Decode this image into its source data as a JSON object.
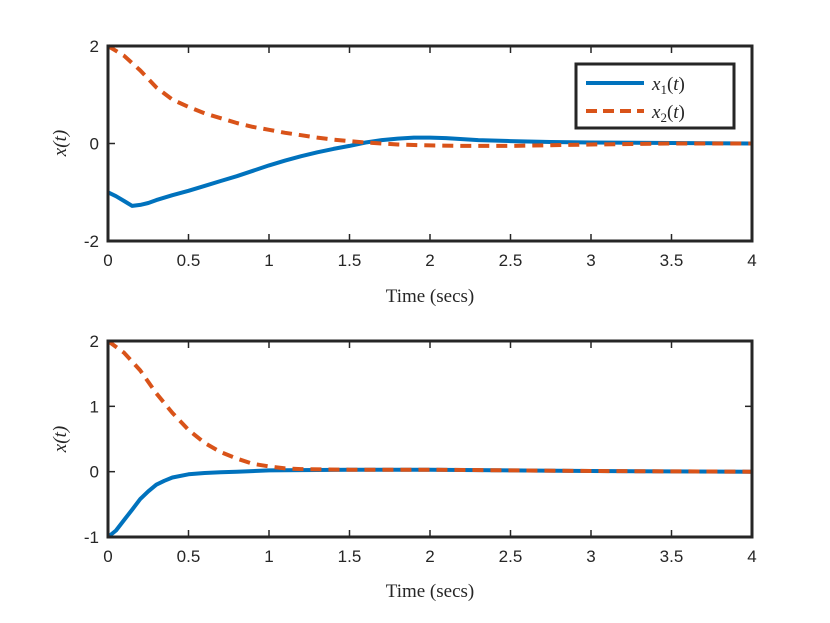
{
  "chart_data": [
    {
      "type": "line",
      "title": "",
      "xlabel": "Time (secs)",
      "ylabel": "x(t)",
      "xlim": [
        0,
        4
      ],
      "ylim": [
        -2,
        2
      ],
      "xticks": [
        "0",
        "0.5",
        "1",
        "1.5",
        "2",
        "2.5",
        "3",
        "3.5",
        "4"
      ],
      "yticks": [
        "-2",
        "0",
        "2"
      ],
      "legend": {
        "position": "top-right",
        "entries": [
          "x1(t)",
          "x2(t)"
        ]
      },
      "series": [
        {
          "name": "x1(t)",
          "color": "#0072BD",
          "style": "solid",
          "x": [
            0,
            0.05,
            0.1,
            0.15,
            0.2,
            0.25,
            0.3,
            0.4,
            0.5,
            0.6,
            0.7,
            0.8,
            0.9,
            1.0,
            1.1,
            1.2,
            1.3,
            1.4,
            1.5,
            1.6,
            1.7,
            1.8,
            1.9,
            2.0,
            2.1,
            2.2,
            2.3,
            2.5,
            2.75,
            3.0,
            3.5,
            4.0
          ],
          "y": [
            -1.0,
            -1.08,
            -1.18,
            -1.28,
            -1.26,
            -1.22,
            -1.16,
            -1.06,
            -0.97,
            -0.87,
            -0.77,
            -0.67,
            -0.56,
            -0.45,
            -0.35,
            -0.26,
            -0.18,
            -0.11,
            -0.05,
            0.02,
            0.07,
            0.1,
            0.12,
            0.12,
            0.11,
            0.09,
            0.07,
            0.05,
            0.03,
            0.02,
            0.01,
            0.0
          ]
        },
        {
          "name": "x2(t)",
          "color": "#D95319",
          "style": "dashed",
          "x": [
            0,
            0.1,
            0.2,
            0.3,
            0.4,
            0.5,
            0.6,
            0.7,
            0.8,
            0.9,
            1.0,
            1.1,
            1.2,
            1.3,
            1.4,
            1.5,
            1.6,
            1.7,
            1.8,
            1.9,
            2.0,
            2.2,
            2.5,
            3.0,
            3.5,
            4.0
          ],
          "y": [
            2.0,
            1.8,
            1.5,
            1.15,
            0.9,
            0.75,
            0.62,
            0.52,
            0.42,
            0.34,
            0.28,
            0.22,
            0.17,
            0.12,
            0.08,
            0.05,
            0.02,
            0.0,
            -0.02,
            -0.03,
            -0.04,
            -0.05,
            -0.05,
            -0.02,
            0.0,
            0.0
          ]
        }
      ]
    },
    {
      "type": "line",
      "title": "",
      "xlabel": "Time (secs)",
      "ylabel": "x(t)",
      "xlim": [
        0,
        4
      ],
      "ylim": [
        -1,
        2
      ],
      "xticks": [
        "0",
        "0.5",
        "1",
        "1.5",
        "2",
        "2.5",
        "3",
        "3.5",
        "4"
      ],
      "yticks": [
        "-1",
        "0",
        "1",
        "2"
      ],
      "series": [
        {
          "name": "x1(t)",
          "color": "#0072BD",
          "style": "solid",
          "x": [
            0,
            0.05,
            0.1,
            0.15,
            0.2,
            0.25,
            0.3,
            0.35,
            0.4,
            0.5,
            0.6,
            0.7,
            0.8,
            1.0,
            1.5,
            2.0,
            3.0,
            4.0
          ],
          "y": [
            -1.0,
            -0.9,
            -0.74,
            -0.58,
            -0.42,
            -0.3,
            -0.2,
            -0.14,
            -0.09,
            -0.04,
            -0.02,
            -0.01,
            0.0,
            0.02,
            0.03,
            0.03,
            0.01,
            0.0
          ]
        },
        {
          "name": "x2(t)",
          "color": "#D95319",
          "style": "dashed",
          "x": [
            0,
            0.1,
            0.2,
            0.3,
            0.4,
            0.5,
            0.6,
            0.7,
            0.8,
            0.9,
            1.0,
            1.1,
            1.2,
            1.5,
            2.0,
            3.0,
            4.0
          ],
          "y": [
            2.0,
            1.82,
            1.55,
            1.2,
            0.9,
            0.64,
            0.44,
            0.3,
            0.2,
            0.12,
            0.08,
            0.05,
            0.04,
            0.03,
            0.03,
            0.01,
            0.0
          ]
        }
      ]
    }
  ]
}
